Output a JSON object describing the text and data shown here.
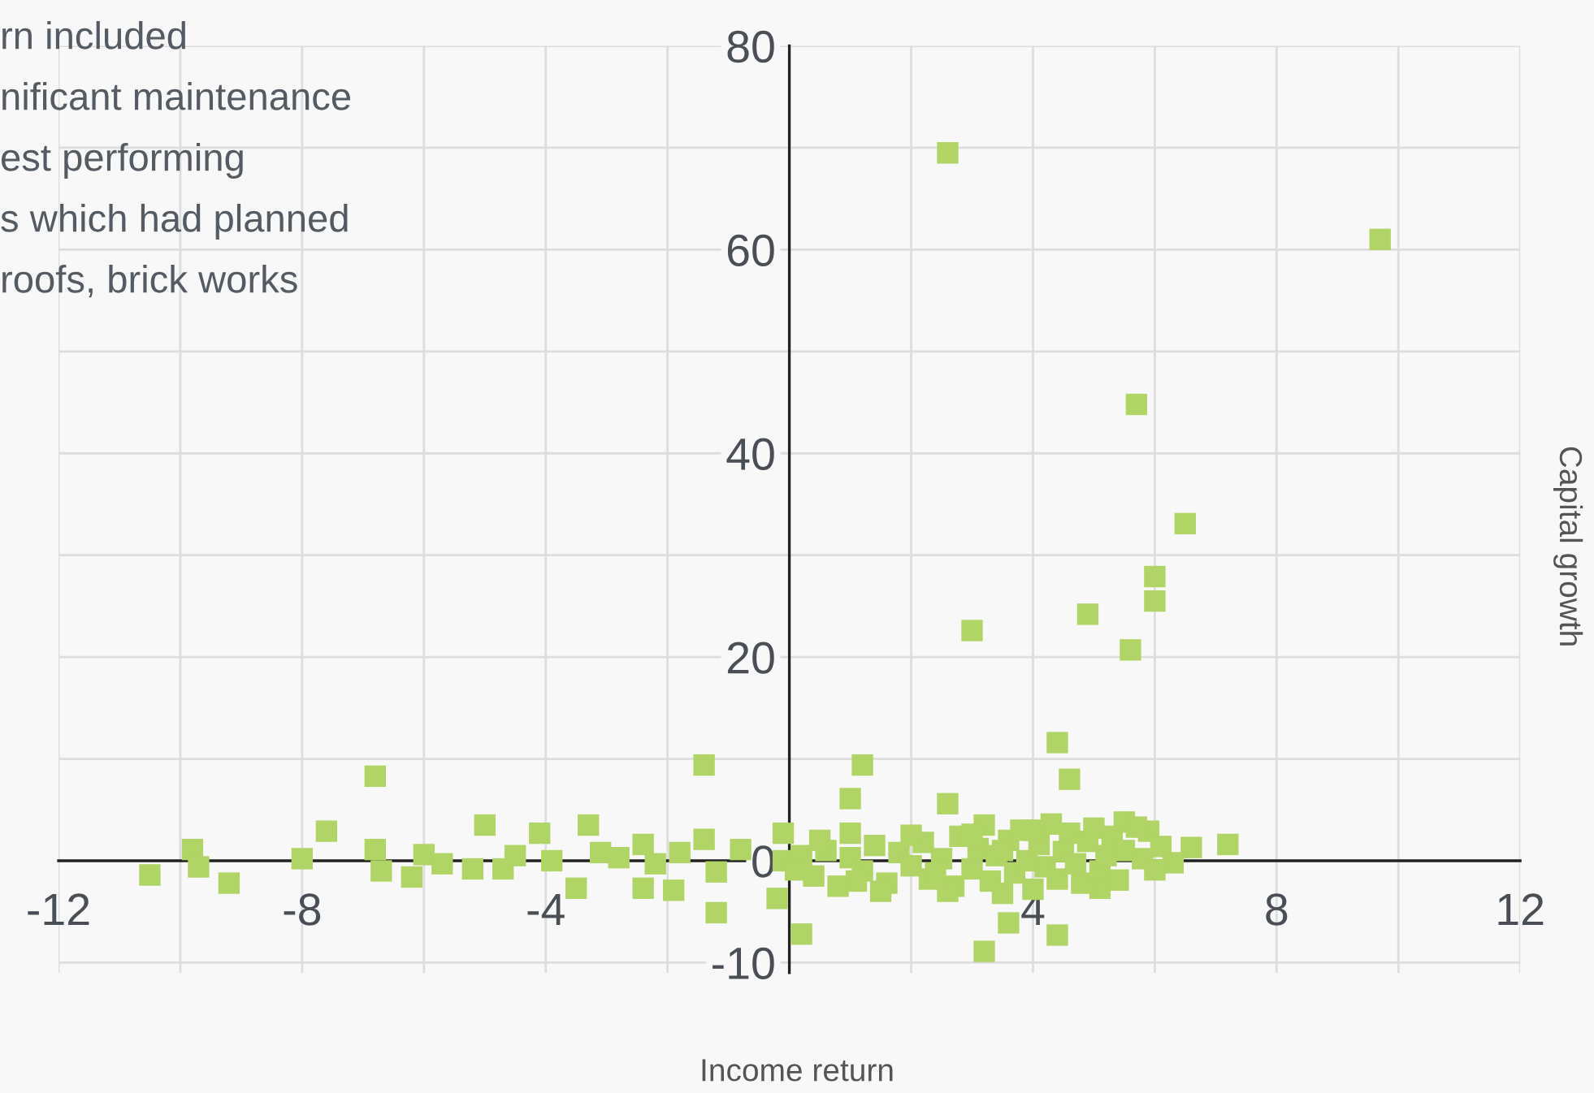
{
  "chart_data": {
    "type": "scatter",
    "xlabel": "Income return",
    "ylabel": "Capital growth",
    "annotations": [
      "rn included",
      "nificant maintenance",
      "est performing",
      "s which had planned",
      "roofs, brick works"
    ],
    "xlim": [
      -12,
      12
    ],
    "ylim": [
      -11,
      80
    ],
    "xticks": [
      -12,
      {
        "value": -10,
        "label": null
      },
      -8,
      {
        "value": -6,
        "label": null
      },
      -4,
      {
        "value": -2,
        "label": null
      },
      {
        "value": 0,
        "label": null
      },
      {
        "value": 2,
        "label": null
      },
      4,
      {
        "value": 6,
        "label": null
      },
      8,
      {
        "value": 10,
        "label": null
      },
      12
    ],
    "yticks": [
      -10,
      0,
      {
        "value": 10,
        "label": null
      },
      20,
      {
        "value": 30,
        "label": null
      },
      40,
      {
        "value": 50,
        "label": null
      },
      60,
      {
        "value": 70,
        "label": null
      },
      80
    ],
    "grid": true,
    "marker": "square",
    "series": [
      {
        "color": "#b0d465",
        "x": [
          2.6,
          9.7,
          5.7,
          6.5,
          6.0,
          6.0,
          4.9,
          3.0,
          5.6,
          4.4,
          -1.4,
          1.2,
          -6.8,
          1.0,
          4.6,
          1.0,
          2.6,
          0.2,
          3.2,
          4.4,
          3.6,
          5.1,
          7.2,
          6.6,
          6.3,
          5.9,
          5.5,
          -10.5,
          -9.8,
          -9.7,
          -9.2,
          -8.0,
          -7.6,
          -6.8,
          -6.7,
          -6.2,
          -6.0,
          -5.7,
          -5.2,
          -5.0,
          -4.7,
          -4.5,
          -4.1,
          -3.9,
          -3.5,
          -3.3,
          -3.1,
          -2.8,
          -2.4,
          -2.4,
          -2.2,
          -1.9,
          -1.8,
          -1.4,
          -1.2,
          -1.2,
          -0.8,
          -0.2,
          -0.1,
          -0.1,
          0.2,
          0.4,
          0.6,
          0.8,
          1.0,
          1.2,
          1.4,
          1.6,
          1.8,
          2.0,
          2.2,
          2.3,
          2.5,
          2.7,
          2.8,
          3.0,
          3.1,
          3.2,
          3.3,
          3.4,
          3.5,
          3.6,
          3.7,
          3.8,
          3.9,
          4.0,
          4.1,
          4.2,
          4.3,
          4.4,
          4.5,
          4.6,
          4.7,
          4.8,
          4.9,
          5.0,
          5.1,
          5.2,
          5.3,
          5.4,
          5.5,
          5.7,
          5.8,
          6.0,
          6.1,
          1.5,
          2.6,
          3.0,
          0.1,
          0.5,
          2.0,
          4.0,
          3.5,
          2.4,
          1.1
        ],
        "values": [
          69.5,
          61.0,
          44.8,
          33.1,
          27.9,
          25.5,
          24.2,
          22.6,
          20.7,
          11.6,
          9.4,
          9.4,
          8.3,
          6.1,
          8.0,
          2.7,
          5.6,
          -7.2,
          -8.9,
          -7.3,
          -6.1,
          -2.7,
          1.6,
          1.3,
          -0.2,
          2.9,
          3.8,
          -1.4,
          1.1,
          -0.6,
          -2.2,
          0.2,
          2.9,
          1.1,
          -1.0,
          -1.6,
          0.6,
          -0.3,
          -0.8,
          3.5,
          -0.8,
          0.5,
          2.7,
          0.0,
          -2.7,
          3.5,
          0.8,
          0.3,
          1.6,
          -2.7,
          -0.3,
          -2.9,
          0.8,
          2.1,
          -5.1,
          -1.1,
          1.1,
          -3.7,
          2.7,
          0.0,
          0.5,
          -1.5,
          1.0,
          -2.5,
          0.3,
          -1.0,
          1.5,
          -2.2,
          0.8,
          -0.5,
          1.8,
          -1.8,
          0.2,
          -2.5,
          2.4,
          -0.8,
          1.2,
          3.5,
          -2.0,
          0.5,
          -3.2,
          2.0,
          -1.2,
          3.0,
          0.0,
          -2.8,
          1.6,
          -0.6,
          3.6,
          -1.8,
          0.9,
          2.7,
          -0.3,
          -2.2,
          1.9,
          3.2,
          -1.0,
          0.5,
          2.4,
          -1.9,
          1.0,
          3.3,
          0.2,
          -0.9,
          1.4,
          -3.0,
          -3.0,
          2.6,
          -0.9,
          2.0,
          2.5,
          3.0,
          1.0,
          -1.2,
          -2.0
        ]
      }
    ]
  }
}
